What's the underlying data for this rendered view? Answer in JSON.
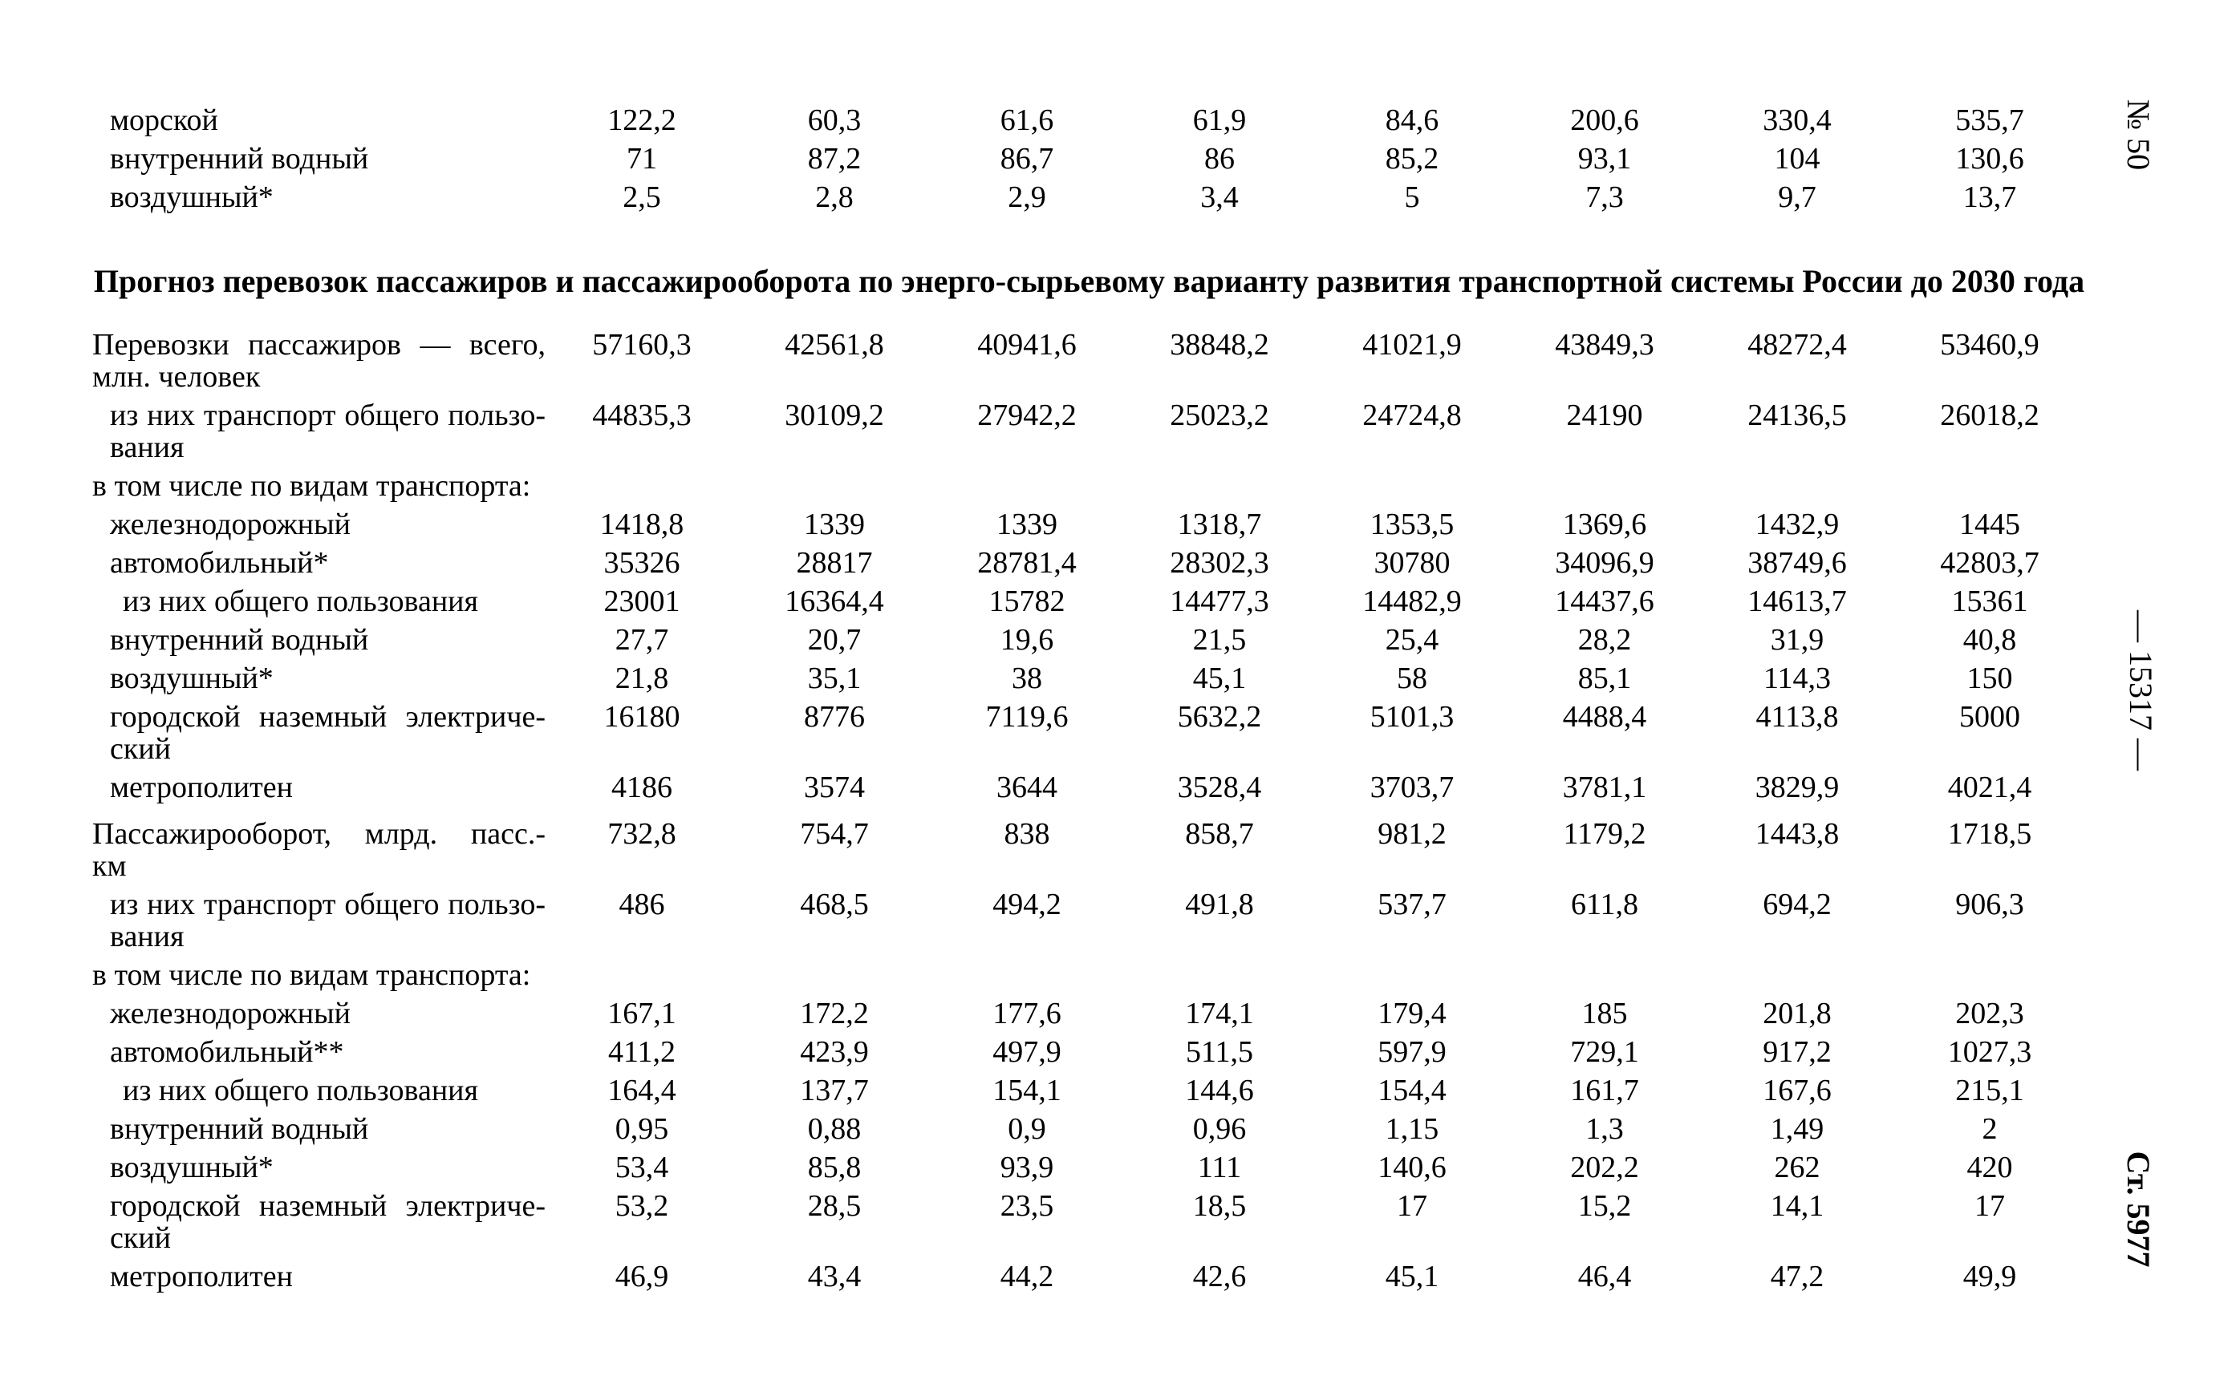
{
  "margin_notes": {
    "issue_number": "№ 50",
    "page_number": "— 15317 —",
    "article_number": "Ст. 5977"
  },
  "title": "Прогноз перевозок пассажиров и пассажирооборота по энерго-сырьевому варианту развития транспортной системы России до 2030 года",
  "top_table": {
    "rows": [
      {
        "label_lines": [
          "морской"
        ],
        "indent": 1,
        "values": [
          "122,2",
          "60,3",
          "61,6",
          "61,9",
          "84,6",
          "200,6",
          "330,4",
          "535,7"
        ]
      },
      {
        "label_lines": [
          "внутренний водный"
        ],
        "indent": 1,
        "values": [
          "71",
          "87,2",
          "86,7",
          "86",
          "85,2",
          "93,1",
          "104",
          "130,6"
        ]
      },
      {
        "label_lines": [
          "воздушный*"
        ],
        "indent": 1,
        "values": [
          "2,5",
          "2,8",
          "2,9",
          "3,4",
          "5",
          "7,3",
          "9,7",
          "13,7"
        ]
      }
    ]
  },
  "forecast_table": {
    "rows": [
      {
        "label_lines": [
          "Перевозки пассажиров — всего,",
          "млн. человек"
        ],
        "indent": 0,
        "justify": true,
        "values": [
          "57160,3",
          "42561,8",
          "40941,6",
          "38848,2",
          "41021,9",
          "43849,3",
          "48272,4",
          "53460,9"
        ]
      },
      {
        "label_lines": [
          "из них транспорт общего пользо-",
          "вания"
        ],
        "indent": 1,
        "justify": true,
        "values": [
          "44835,3",
          "30109,2",
          "27942,2",
          "25023,2",
          "24724,8",
          "24190",
          "24136,5",
          "26018,2"
        ]
      },
      {
        "label_lines": [
          "в том числе по видам транспорта:"
        ],
        "indent": 0,
        "values": []
      },
      {
        "label_lines": [
          "железнодорожный"
        ],
        "indent": 1,
        "values": [
          "1418,8",
          "1339",
          "1339",
          "1318,7",
          "1353,5",
          "1369,6",
          "1432,9",
          "1445"
        ]
      },
      {
        "label_lines": [
          "автомобильный*"
        ],
        "indent": 1,
        "values": [
          "35326",
          "28817",
          "28781,4",
          "28302,3",
          "30780",
          "34096,9",
          "38749,6",
          "42803,7"
        ]
      },
      {
        "label_lines": [
          "из них общего пользования"
        ],
        "indent": 2,
        "values": [
          "23001",
          "16364,4",
          "15782",
          "14477,3",
          "14482,9",
          "14437,6",
          "14613,7",
          "15361"
        ]
      },
      {
        "label_lines": [
          "внутренний водный"
        ],
        "indent": 1,
        "values": [
          "27,7",
          "20,7",
          "19,6",
          "21,5",
          "25,4",
          "28,2",
          "31,9",
          "40,8"
        ]
      },
      {
        "label_lines": [
          "воздушный*"
        ],
        "indent": 1,
        "values": [
          "21,8",
          "35,1",
          "38",
          "45,1",
          "58",
          "85,1",
          "114,3",
          "150"
        ]
      },
      {
        "label_lines": [
          "городской наземный электриче-",
          "ский"
        ],
        "indent": 1,
        "justify": true,
        "values": [
          "16180",
          "8776",
          "7119,6",
          "5632,2",
          "5101,3",
          "4488,4",
          "4113,8",
          "5000"
        ]
      },
      {
        "label_lines": [
          "метрополитен"
        ],
        "indent": 1,
        "values": [
          "4186",
          "3574",
          "3644",
          "3528,4",
          "3703,7",
          "3781,1",
          "3829,9",
          "4021,4"
        ]
      },
      {
        "label_lines": [
          "Пассажирооборот, млрд. пасс.-",
          "км"
        ],
        "indent": 0,
        "justify": true,
        "gap_before": true,
        "values": [
          "732,8",
          "754,7",
          "838",
          "858,7",
          "981,2",
          "1179,2",
          "1443,8",
          "1718,5"
        ]
      },
      {
        "label_lines": [
          "из них транспорт общего пользо-",
          "вания"
        ],
        "indent": 1,
        "justify": true,
        "values": [
          "486",
          "468,5",
          "494,2",
          "491,8",
          "537,7",
          "611,8",
          "694,2",
          "906,3"
        ]
      },
      {
        "label_lines": [
          "в том числе по видам транспорта:"
        ],
        "indent": 0,
        "values": []
      },
      {
        "label_lines": [
          "железнодорожный"
        ],
        "indent": 1,
        "values": [
          "167,1",
          "172,2",
          "177,6",
          "174,1",
          "179,4",
          "185",
          "201,8",
          "202,3"
        ]
      },
      {
        "label_lines": [
          "автомобильный**"
        ],
        "indent": 1,
        "values": [
          "411,2",
          "423,9",
          "497,9",
          "511,5",
          "597,9",
          "729,1",
          "917,2",
          "1027,3"
        ]
      },
      {
        "label_lines": [
          "из них общего пользования"
        ],
        "indent": 2,
        "values": [
          "164,4",
          "137,7",
          "154,1",
          "144,6",
          "154,4",
          "161,7",
          "167,6",
          "215,1"
        ]
      },
      {
        "label_lines": [
          "внутренний водный"
        ],
        "indent": 1,
        "values": [
          "0,95",
          "0,88",
          "0,9",
          "0,96",
          "1,15",
          "1,3",
          "1,49",
          "2"
        ]
      },
      {
        "label_lines": [
          "воздушный*"
        ],
        "indent": 1,
        "values": [
          "53,4",
          "85,8",
          "93,9",
          "111",
          "140,6",
          "202,2",
          "262",
          "420"
        ]
      },
      {
        "label_lines": [
          "городской наземный электриче-",
          "ский"
        ],
        "indent": 1,
        "justify": true,
        "values": [
          "53,2",
          "28,5",
          "23,5",
          "18,5",
          "17",
          "15,2",
          "14,1",
          "17"
        ]
      },
      {
        "label_lines": [
          "метрополитен"
        ],
        "indent": 1,
        "values": [
          "46,9",
          "43,4",
          "44,2",
          "42,6",
          "45,1",
          "46,4",
          "47,2",
          "49,9"
        ]
      }
    ]
  }
}
